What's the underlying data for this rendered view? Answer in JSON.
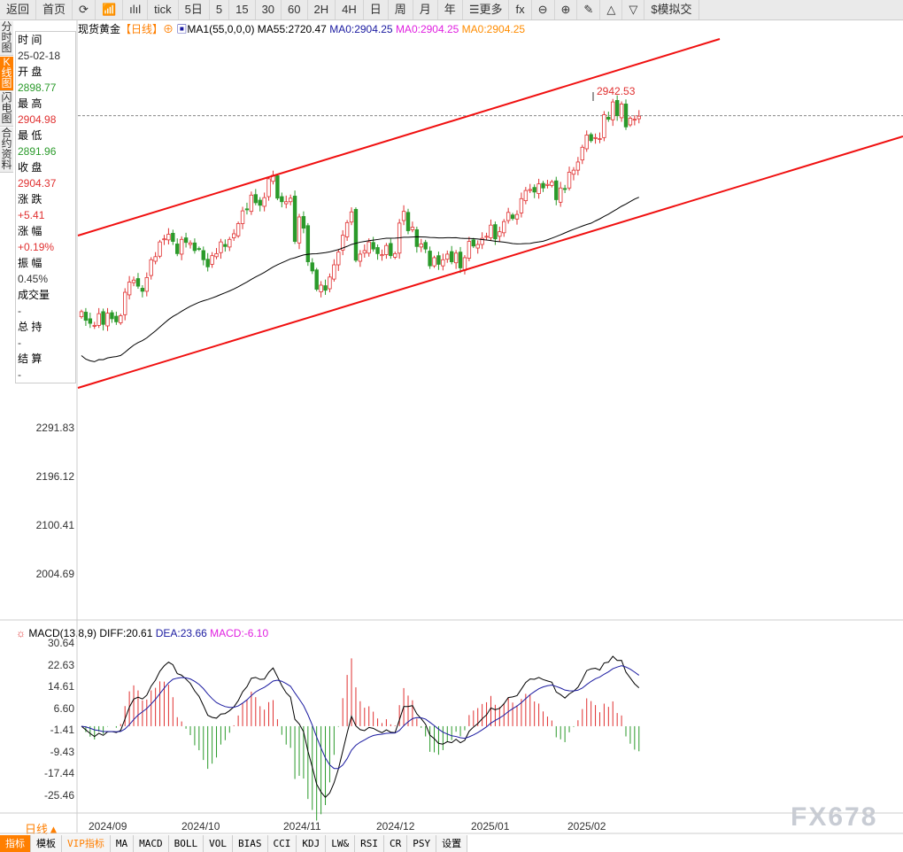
{
  "toolbar": [
    "返回",
    "首页",
    "⟳",
    "📶",
    "ılıl",
    "tick",
    "5日",
    "5",
    "15",
    "30",
    "60",
    "2H",
    "4H",
    "日",
    "周",
    "月",
    "年",
    "☰更多",
    "fx",
    "⊖",
    "⊕",
    "✎",
    "△",
    "▽",
    "$模拟交"
  ],
  "side_tabs": [
    {
      "label": "分时图",
      "active": false
    },
    {
      "label": "K线图",
      "active": true
    },
    {
      "label": "闪电图",
      "active": false
    },
    {
      "label": "合约资料",
      "active": false
    }
  ],
  "info": [
    {
      "k": "时 间",
      "v": "25-02-18",
      "c": "#333"
    },
    {
      "k": "开 盘",
      "v": "2898.77",
      "c": "#2a9a2a"
    },
    {
      "k": "最 高",
      "v": "2904.98",
      "c": "#e03030"
    },
    {
      "k": "最 低",
      "v": "2891.96",
      "c": "#2a9a2a"
    },
    {
      "k": "收 盘",
      "v": "2904.37",
      "c": "#e03030"
    },
    {
      "k": "涨 跌",
      "v": "+5.41",
      "c": "#e03030"
    },
    {
      "k": "涨 幅",
      "v": "+0.19%",
      "c": "#e03030"
    },
    {
      "k": "振 幅",
      "v": "0.45%",
      "c": "#333"
    },
    {
      "k": "成交量",
      "v": "-",
      "c": "#333"
    },
    {
      "k": "总 持",
      "v": "-",
      "c": "#333"
    },
    {
      "k": "结 算",
      "v": "-",
      "c": "#333"
    }
  ],
  "header": {
    "symbol": "现货黄金",
    "period": "【日线】",
    "ma_name": "MA1(55,0,0,0)",
    "ma55": "MA55:2720.47",
    "ma0a": "MA0:2904.25",
    "ma0b": "MA0:2904.25",
    "ma0c": "MA0:2904.25"
  },
  "macd_header": {
    "name": "MACD(13,8,9)",
    "diff": "DIFF:20.61",
    "dea": "DEA:23.66",
    "macd": "MACD:-6.10"
  },
  "period_label": "日线▲",
  "watermark": "FX678",
  "bottom_tabs": [
    "指标",
    "模板",
    "VIP指标",
    "MA",
    "MACD",
    "BOLL",
    "VOL",
    "BIAS",
    "CCI",
    "KDJ",
    "LW&",
    "RSI",
    "CR",
    "PSY",
    "设置"
  ],
  "colors": {
    "up": "#e03030",
    "down": "#2a9a2a",
    "accent": "#ff7f00",
    "ma55": "#000000",
    "dea": "#1a1aa0"
  },
  "chart_data": {
    "type": "candlestick",
    "price_ticks": [
      "2291.83",
      "2196.12",
      "2100.41",
      "2004.69"
    ],
    "macd_ticks": [
      "30.64",
      "22.63",
      "14.61",
      "6.60",
      "-1.41",
      "-9.43",
      "-17.44",
      "-25.46"
    ],
    "date_ticks": [
      "2024/09",
      "2024/10",
      "2024/11",
      "2024/12",
      "2025/01",
      "2025/02"
    ],
    "high_label": "2942.53",
    "last_high": 2904.98,
    "closes": [
      2520,
      2503,
      2497,
      2493,
      2516,
      2495,
      2517,
      2506,
      2500,
      2512,
      2558,
      2578,
      2582,
      2570,
      2560,
      2587,
      2622,
      2628,
      2657,
      2663,
      2672,
      2658,
      2634,
      2662,
      2656,
      2655,
      2640,
      2643,
      2622,
      2608,
      2630,
      2634,
      2657,
      2648,
      2662,
      2673,
      2693,
      2718,
      2720,
      2749,
      2734,
      2729,
      2744,
      2781,
      2788,
      2743,
      2736,
      2736,
      2743,
      2658,
      2706,
      2684,
      2618,
      2600,
      2564,
      2572,
      2562,
      2588,
      2612,
      2637,
      2670,
      2695,
      2716,
      2621,
      2633,
      2640,
      2657,
      2643,
      2634,
      2632,
      2650,
      2630,
      2634,
      2694,
      2717,
      2679,
      2686,
      2648,
      2653,
      2643,
      2610,
      2626,
      2613,
      2622,
      2633,
      2618,
      2635,
      2606,
      2626,
      2658,
      2649,
      2652,
      2664,
      2668,
      2690,
      2663,
      2677,
      2697,
      2715,
      2703,
      2711,
      2742,
      2758,
      2760,
      2755,
      2771,
      2763,
      2770,
      2775,
      2740,
      2763,
      2760,
      2794,
      2798,
      2814,
      2843,
      2867,
      2856,
      2862,
      2860,
      2907,
      2898,
      2932,
      2905,
      2928,
      2883,
      2900,
      2898,
      2904
    ]
  }
}
